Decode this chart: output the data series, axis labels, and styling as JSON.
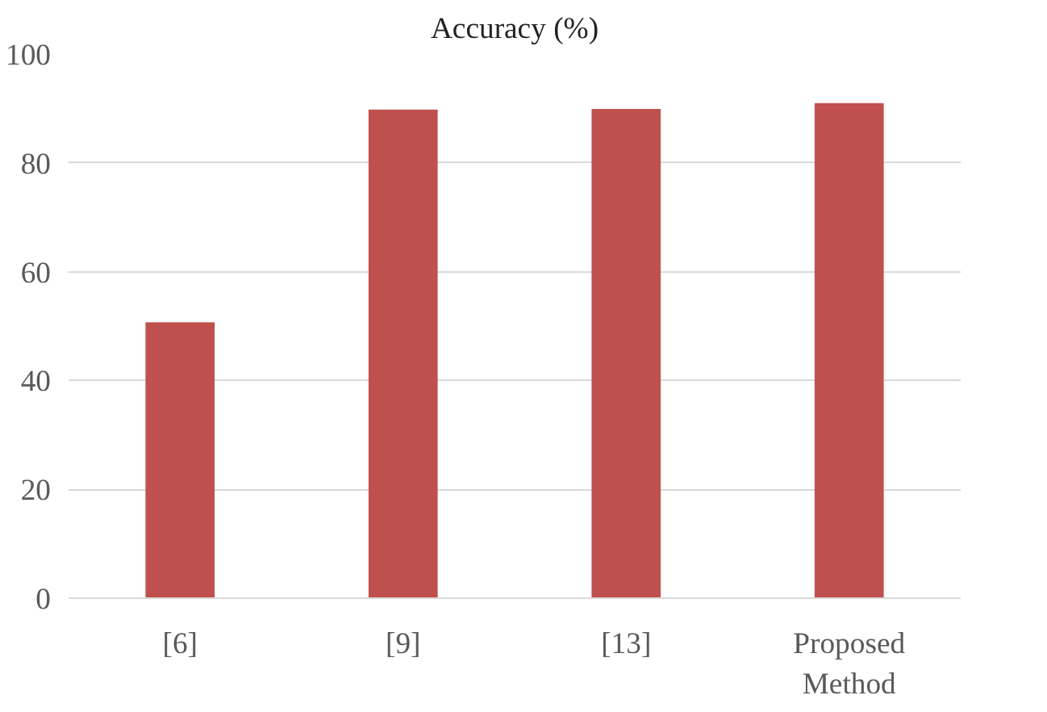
{
  "chart_data": {
    "type": "bar",
    "title": "Accuracy (%)",
    "categories": [
      "[6]",
      "[9]",
      "[13]",
      "Proposed Method"
    ],
    "values": [
      50.7,
      89.8,
      89.9,
      91.0
    ],
    "color": "#c0504d",
    "ylim": [
      0,
      100
    ],
    "yticks": [
      0,
      20,
      40,
      60,
      80,
      100
    ],
    "grid": "y"
  }
}
